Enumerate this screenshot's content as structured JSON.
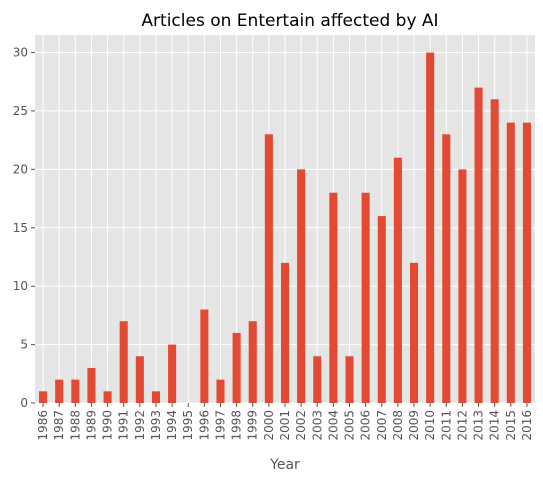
{
  "chart_data": {
    "type": "bar",
    "title": "Articles on Entertain affected by AI",
    "xlabel": "Year",
    "ylabel": "",
    "ylim": [
      0,
      31.5
    ],
    "yticks": [
      0,
      5,
      10,
      15,
      20,
      25,
      30
    ],
    "grid": true,
    "legend": "none",
    "categories": [
      "1986",
      "1987",
      "1988",
      "1989",
      "1990",
      "1991",
      "1992",
      "1993",
      "1994",
      "1995",
      "1996",
      "1997",
      "1998",
      "1999",
      "2000",
      "2001",
      "2002",
      "2003",
      "2004",
      "2005",
      "2006",
      "2007",
      "2008",
      "2009",
      "2010",
      "2011",
      "2012",
      "2013",
      "2014",
      "2015",
      "2016"
    ],
    "values": [
      1,
      2,
      2,
      3,
      1,
      7,
      4,
      1,
      5,
      0,
      8,
      2,
      6,
      7,
      23,
      12,
      20,
      4,
      18,
      4,
      18,
      16,
      21,
      12,
      30,
      23,
      20,
      27,
      26,
      24,
      24
    ],
    "colors": {
      "bar": "#E24A33",
      "plot_background": "#E5E5E5",
      "grid": "#FFFFFF"
    }
  }
}
